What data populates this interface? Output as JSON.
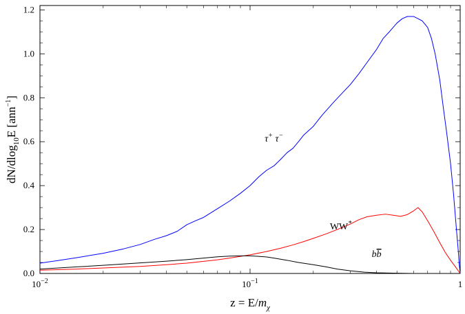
{
  "chart_data": {
    "type": "line",
    "xlabel": {
      "prefix": "z = E/",
      "italic": "m",
      "subscript": "χ"
    },
    "ylabel": {
      "prefix": "dN/dlog",
      "subscript": "10",
      "mid": "E [ann",
      "superscript": "−1",
      "suffix": "]"
    },
    "x_scale": "log",
    "xlim": [
      0.01,
      1
    ],
    "ylim": [
      0,
      1.22
    ],
    "x_ticks": [
      {
        "value": 0.01,
        "label_base": "10",
        "label_exp": "−2"
      },
      {
        "value": 0.1,
        "label_base": "10",
        "label_exp": "−1"
      },
      {
        "value": 1,
        "label_base": "1",
        "label_exp": ""
      }
    ],
    "y_ticks": [
      {
        "value": 0.0,
        "label": "0.0"
      },
      {
        "value": 0.2,
        "label": "0.2"
      },
      {
        "value": 0.4,
        "label": "0.4"
      },
      {
        "value": 0.6,
        "label": "0.6"
      },
      {
        "value": 0.8,
        "label": "0.8"
      },
      {
        "value": 1.0,
        "label": "1.0"
      },
      {
        "value": 1.2,
        "label": "1.2"
      }
    ],
    "series": [
      {
        "color": "#0000ff",
        "points": [
          [
            0.01,
            0.047
          ],
          [
            0.012,
            0.058
          ],
          [
            0.015,
            0.072
          ],
          [
            0.02,
            0.092
          ],
          [
            0.025,
            0.112
          ],
          [
            0.03,
            0.132
          ],
          [
            0.035,
            0.155
          ],
          [
            0.04,
            0.172
          ],
          [
            0.045,
            0.192
          ],
          [
            0.05,
            0.222
          ],
          [
            0.055,
            0.24
          ],
          [
            0.06,
            0.255
          ],
          [
            0.07,
            0.295
          ],
          [
            0.08,
            0.33
          ],
          [
            0.09,
            0.365
          ],
          [
            0.1,
            0.4
          ],
          [
            0.11,
            0.44
          ],
          [
            0.12,
            0.47
          ],
          [
            0.13,
            0.49
          ],
          [
            0.14,
            0.52
          ],
          [
            0.15,
            0.55
          ],
          [
            0.16,
            0.57
          ],
          [
            0.17,
            0.6
          ],
          [
            0.18,
            0.63
          ],
          [
            0.2,
            0.67
          ],
          [
            0.22,
            0.72
          ],
          [
            0.25,
            0.78
          ],
          [
            0.28,
            0.83
          ],
          [
            0.3,
            0.86
          ],
          [
            0.33,
            0.91
          ],
          [
            0.36,
            0.96
          ],
          [
            0.4,
            1.02
          ],
          [
            0.43,
            1.07
          ],
          [
            0.46,
            1.1
          ],
          [
            0.5,
            1.14
          ],
          [
            0.53,
            1.16
          ],
          [
            0.56,
            1.17
          ],
          [
            0.6,
            1.17
          ],
          [
            0.63,
            1.16
          ],
          [
            0.66,
            1.15
          ],
          [
            0.7,
            1.12
          ],
          [
            0.73,
            1.07
          ],
          [
            0.76,
            1.0
          ],
          [
            0.8,
            0.88
          ],
          [
            0.83,
            0.76
          ],
          [
            0.86,
            0.65
          ],
          [
            0.9,
            0.5
          ],
          [
            0.93,
            0.36
          ],
          [
            0.96,
            0.2
          ],
          [
            0.98,
            0.1
          ],
          [
            0.99,
            0.04
          ],
          [
            1.0,
            0.0
          ]
        ]
      },
      {
        "color": "#ff0000",
        "points": [
          [
            0.01,
            0.015
          ],
          [
            0.015,
            0.02
          ],
          [
            0.02,
            0.025
          ],
          [
            0.03,
            0.032
          ],
          [
            0.04,
            0.04
          ],
          [
            0.05,
            0.047
          ],
          [
            0.06,
            0.055
          ],
          [
            0.07,
            0.062
          ],
          [
            0.08,
            0.07
          ],
          [
            0.09,
            0.078
          ],
          [
            0.1,
            0.085
          ],
          [
            0.12,
            0.1
          ],
          [
            0.14,
            0.115
          ],
          [
            0.16,
            0.13
          ],
          [
            0.18,
            0.145
          ],
          [
            0.2,
            0.16
          ],
          [
            0.23,
            0.18
          ],
          [
            0.26,
            0.2
          ],
          [
            0.3,
            0.225
          ],
          [
            0.33,
            0.245
          ],
          [
            0.36,
            0.258
          ],
          [
            0.4,
            0.265
          ],
          [
            0.44,
            0.27
          ],
          [
            0.48,
            0.265
          ],
          [
            0.52,
            0.26
          ],
          [
            0.56,
            0.268
          ],
          [
            0.6,
            0.285
          ],
          [
            0.63,
            0.3
          ],
          [
            0.66,
            0.28
          ],
          [
            0.7,
            0.24
          ],
          [
            0.75,
            0.19
          ],
          [
            0.8,
            0.14
          ],
          [
            0.85,
            0.095
          ],
          [
            0.9,
            0.06
          ],
          [
            0.95,
            0.03
          ],
          [
            1.0,
            0.0
          ]
        ]
      },
      {
        "color": "#000000",
        "points": [
          [
            0.01,
            0.02
          ],
          [
            0.015,
            0.03
          ],
          [
            0.02,
            0.037
          ],
          [
            0.03,
            0.048
          ],
          [
            0.04,
            0.056
          ],
          [
            0.05,
            0.063
          ],
          [
            0.06,
            0.07
          ],
          [
            0.07,
            0.076
          ],
          [
            0.08,
            0.079
          ],
          [
            0.09,
            0.08
          ],
          [
            0.1,
            0.08
          ],
          [
            0.11,
            0.078
          ],
          [
            0.12,
            0.075
          ],
          [
            0.13,
            0.07
          ],
          [
            0.15,
            0.06
          ],
          [
            0.17,
            0.05
          ],
          [
            0.2,
            0.04
          ],
          [
            0.23,
            0.03
          ],
          [
            0.26,
            0.02
          ],
          [
            0.3,
            0.012
          ],
          [
            0.35,
            0.006
          ],
          [
            0.4,
            0.003
          ],
          [
            0.5,
            0.001
          ],
          [
            0.6,
            0.0
          ],
          [
            0.8,
            0.0
          ],
          [
            1.0,
            0.0
          ]
        ]
      }
    ],
    "annotations": [
      {
        "id": "tau",
        "parts": [
          {
            "t": "τ"
          },
          {
            "t": "+",
            "sup": true
          },
          {
            "t": " τ"
          },
          {
            "t": "−",
            "sup": true
          }
        ],
        "x": 0.13,
        "y": 0.6
      },
      {
        "id": "ww",
        "parts": [
          {
            "t": "WW",
            "upright": true
          },
          {
            "t": "*",
            "sup": true
          }
        ],
        "x": 0.27,
        "y": 0.2
      },
      {
        "id": "bb",
        "parts": [
          {
            "t": "b"
          },
          {
            "t": "b",
            "overline": true
          }
        ],
        "x": 0.4,
        "y": 0.075
      }
    ]
  }
}
